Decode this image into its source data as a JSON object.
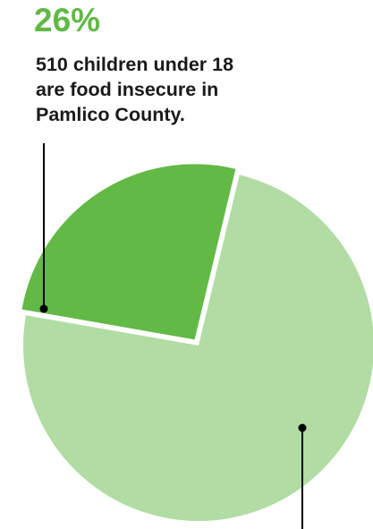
{
  "chart_data": {
    "type": "pie",
    "highlight_value": "26%",
    "caption_lines": [
      "510 children under 18",
      "are food insecure in",
      "Pamlico County."
    ],
    "slices": [
      {
        "value": 26,
        "color": "#62b946",
        "exploded": true
      },
      {
        "value": 74,
        "color": "#b1dca3",
        "exploded": false
      }
    ],
    "accent_color": "#62b946",
    "leader_line_color": "#000000"
  }
}
